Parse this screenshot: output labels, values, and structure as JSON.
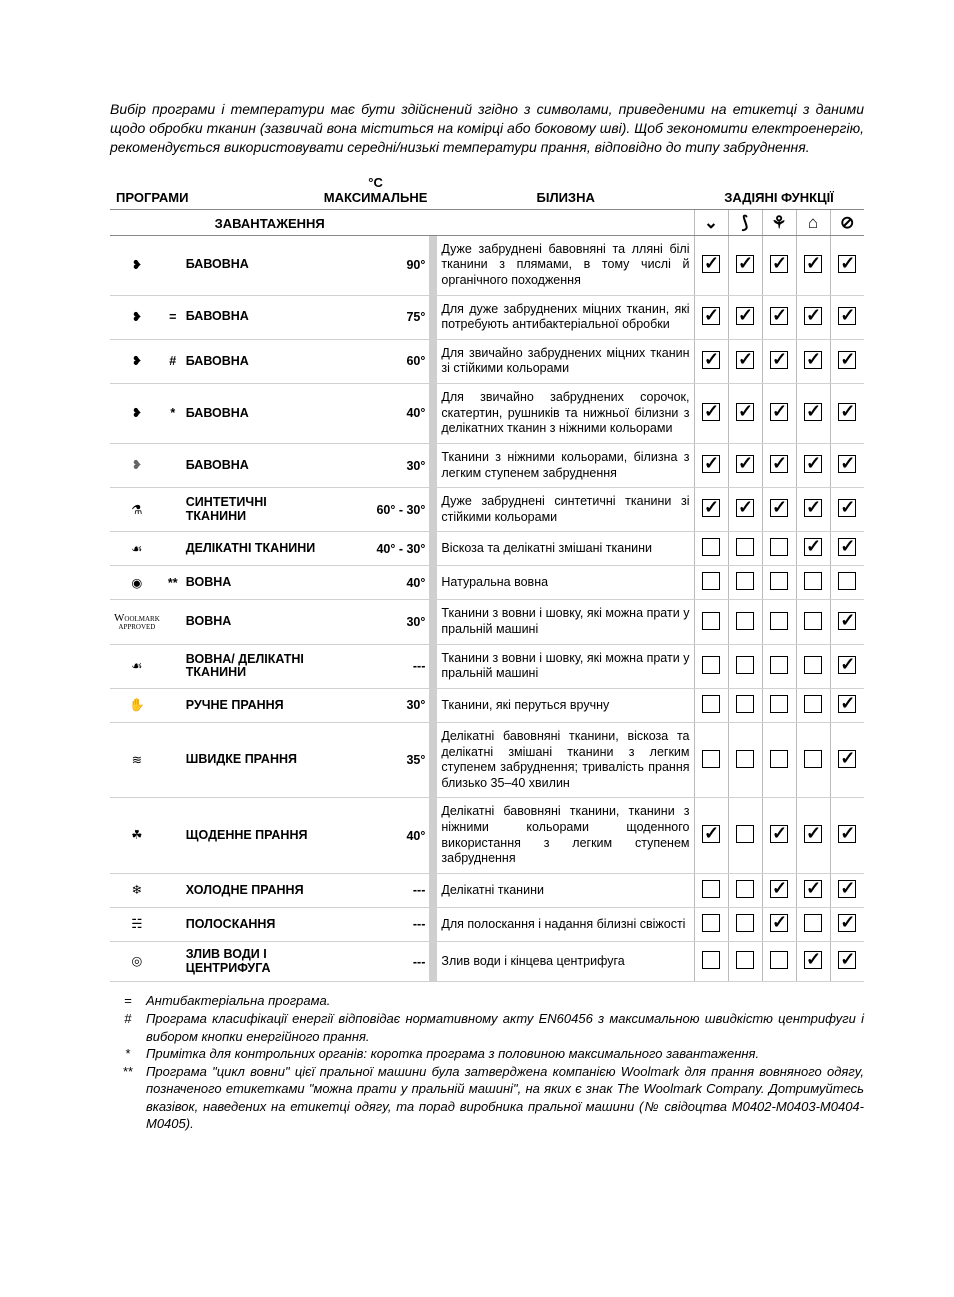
{
  "intro": "Вибір програми і температури має бути здійснений згідно з символами, приведеними на етикетці з даними щодо обробки тканин (зазвичай вона міститься на комірці або боковому шві). Щоб зекономити електроенергію, рекомендується використовувати середні/низькі температури прання, відповідно до типу забруднення.",
  "headers": {
    "programs": "ПРОГРАМИ",
    "temp": "°С МАКСИМАЛЬНЕ",
    "load": "ЗАВАНТАЖЕННЯ",
    "laund": "БІЛИЗНА",
    "funcs": "ЗАДІЯНІ ФУНКЦІЇ"
  },
  "func_icons": [
    "⌄",
    "⟆",
    "⚘",
    "⌂",
    "⊘"
  ],
  "rows": [
    {
      "icon": "cotton",
      "mark": "",
      "name": "БАВОВНА",
      "temp": "90°",
      "desc": "Дуже забруднені бавовняні та лляні білі тканини з плямами, в тому числі й органічного походження",
      "checks": [
        true,
        true,
        true,
        true,
        true
      ]
    },
    {
      "icon": "cotton",
      "mark": "=",
      "name": "БАВОВНА",
      "temp": "75°",
      "desc": "Для дуже забруднених міцних тканин, які потребують антибактеріальної обробки",
      "checks": [
        true,
        true,
        true,
        true,
        true
      ]
    },
    {
      "icon": "cotton",
      "mark": "#",
      "name": "БАВОВНА",
      "temp": "60°",
      "desc": "Для звичайно забруднених міцних тканин зі стійкими кольорами",
      "checks": [
        true,
        true,
        true,
        true,
        true
      ]
    },
    {
      "icon": "cotton",
      "mark": "*",
      "name": "БАВОВНА",
      "temp": "40°",
      "desc": "Для звичайно забруднених сорочок, скатертин, рушників та нижньої білизни з делікатних тканин з ніжними кольорами",
      "checks": [
        true,
        true,
        true,
        true,
        true
      ]
    },
    {
      "icon": "cotton-o",
      "mark": "",
      "name": "БАВОВНА",
      "temp": "30°",
      "desc": "Тканини з ніжними кольорами, білизна з легким ступенем забруднення",
      "checks": [
        true,
        true,
        true,
        true,
        true
      ]
    },
    {
      "icon": "flask",
      "mark": "",
      "name": "СИНТЕТИЧНІ ТКАНИНИ",
      "temp": "60° - 30°",
      "desc": "Дуже забруднені синтетичні тканини зі стійкими кольорами",
      "checks": [
        true,
        true,
        true,
        true,
        true
      ]
    },
    {
      "icon": "feather",
      "mark": "",
      "name": "ДЕЛІКАТНІ ТКАНИНИ",
      "temp": "40° - 30°",
      "desc": "Віскоза та делікатні змішані тканини",
      "checks": [
        false,
        false,
        false,
        true,
        true
      ]
    },
    {
      "icon": "wool",
      "mark": "**",
      "name": "ВОВНА",
      "temp": "40°",
      "desc": "Натуральна вовна",
      "checks": [
        false,
        false,
        false,
        false,
        false
      ]
    },
    {
      "icon": "woolmark",
      "mark": "",
      "name": "ВОВНА",
      "temp": "30°",
      "desc": "Тканини з вовни і шовку, які можна прати у пральній машині",
      "checks": [
        false,
        false,
        false,
        false,
        true
      ]
    },
    {
      "icon": "feather",
      "mark": "",
      "name": "ВОВНА/ ДЕЛІКАТНІ ТКАНИНИ",
      "temp": "---",
      "desc": "Тканини з вовни і шовку, які можна прати у пральній машині",
      "checks": [
        false,
        false,
        false,
        false,
        true
      ]
    },
    {
      "icon": "hand",
      "mark": "",
      "name": "РУЧНЕ ПРАННЯ",
      "temp": "30°",
      "desc": "Тканини, які перуться вручну",
      "checks": [
        false,
        false,
        false,
        false,
        true
      ]
    },
    {
      "icon": "fast",
      "mark": "",
      "name": "ШВИДКЕ ПРАННЯ",
      "temp": "35°",
      "desc": "Делікатні бавовняні тканини, віскоза та делікатні змішані тканини з легким ступенем забруднення; тривалість прання близько 35–40 хвилин",
      "checks": [
        false,
        false,
        false,
        false,
        true
      ]
    },
    {
      "icon": "daily",
      "mark": "",
      "name": "ЩОДЕННЕ ПРАННЯ",
      "temp": "40°",
      "desc": "Делікатні бавовняні тканини, тканини з ніжними кольорами щоденного використання з легким ступенем забруднення",
      "checks": [
        true,
        false,
        true,
        true,
        true
      ]
    },
    {
      "icon": "snow",
      "mark": "",
      "name": "ХОЛОДНЕ ПРАННЯ",
      "temp": "---",
      "desc": "Делікатні тканини",
      "checks": [
        false,
        false,
        true,
        true,
        true
      ]
    },
    {
      "icon": "rinse",
      "mark": "",
      "name": "ПОЛОСКАННЯ",
      "temp": "---",
      "desc": "Для полоскання і надання білизні свіжості",
      "checks": [
        false,
        false,
        true,
        false,
        true
      ]
    },
    {
      "icon": "spin",
      "mark": "",
      "name": "ЗЛИВ ВОДИ І ЦЕНТРИФУГА",
      "temp": "---",
      "desc": "Злив води і кінцева центрифуга",
      "checks": [
        false,
        false,
        false,
        true,
        true
      ]
    }
  ],
  "footnotes": [
    {
      "sym": "=",
      "text": "Антибактеріальна програма."
    },
    {
      "sym": "#",
      "text": "Програма класифікації енергії відповідає нормативному акту EN60456 з максимальною швидкістю центрифуги і вибором кнопки енергійного прання."
    },
    {
      "sym": "*",
      "text": "Примітка для контрольних органів: коротка програма з половиною  максимального завантаження."
    },
    {
      "sym": "**",
      "text": "Програма \"цикл вовни\" цієї пральної машини була затверджена компанією Woolmark для прання вовняного одягу, позначеного етикетками \"можна прати у пральній машині\", на яких є знак The Woolmark Company. Дотримуйтесь вказівок, наведених на етикетці одягу, та порад виробника пральної машини (№ свідоцтва M0402-M0403-M0404-M0405)."
    }
  ],
  "icon_glyphs": {
    "cotton": "❥",
    "cotton-o": "❥",
    "flask": "⚗",
    "feather": "☙",
    "wool": "◉",
    "hand": "✋",
    "fast": "≋",
    "daily": "☘",
    "snow": "❄",
    "rinse": "☵",
    "spin": "◎"
  },
  "woolmark_text": {
    "top": "W",
    "mid": "OOLMARK",
    "bot": "APPROVED"
  }
}
